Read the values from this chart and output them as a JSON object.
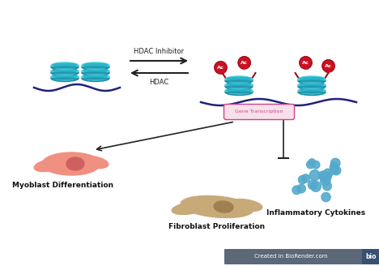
{
  "bg_color": "#ffffff",
  "hdac_inhibitor_label": "HDAC Inhibitor",
  "hdac_label": "HDAC",
  "gene_transcription_label": "Gene Transcription",
  "myoblast_label": "Myoblast Differentiation",
  "inflammatory_label": "Inflammatory Cytokines",
  "fibroblast_label": "Fibroblast Proliferation",
  "ac_label": "Ac",
  "teal_light": "#4dcde0",
  "teal_mid": "#2ab5cc",
  "teal_dark": "#1a8aa0",
  "navy_color": "#22227a",
  "red_color": "#cc1122",
  "red_dark": "#991122",
  "pink_cell": "#f09080",
  "pink_nucleus": "#d06060",
  "tan_cell": "#c8aa78",
  "tan_nucleus": "#a08050",
  "cytokine_color": "#55aacc",
  "arrow_color": "#222222",
  "gene_box_face": "#f8e0ea",
  "gene_box_edge": "#cc4488",
  "gene_text_color": "#cc4488",
  "biorender_bg": "#5a6878",
  "biorender_btn": "#3a5070"
}
